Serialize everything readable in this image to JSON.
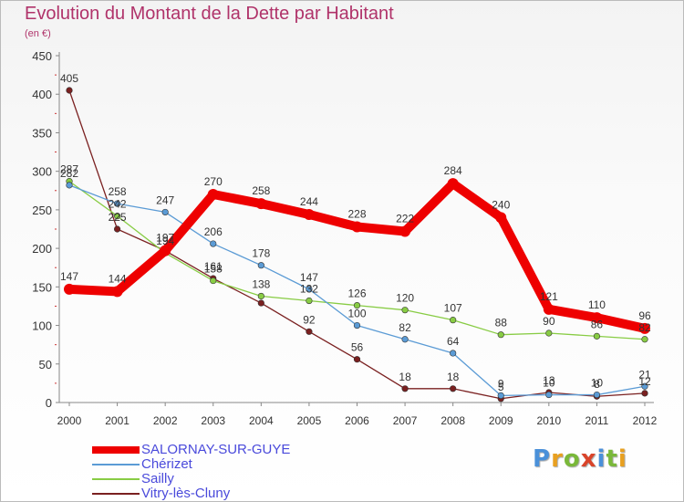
{
  "title": "Evolution du Montant de la Dette par Habitant",
  "subtitle": "(en €)",
  "logo_text": "Proxiti",
  "logo_colors": [
    "#4a90d9",
    "#e8a020",
    "#7ab83a",
    "#d9442a",
    "#4a90d9",
    "#7ab83a",
    "#e8a020"
  ],
  "chart_data": {
    "type": "line",
    "x": [
      "2000",
      "2001",
      "2002",
      "2003",
      "2004",
      "2005",
      "2006",
      "2007",
      "2008",
      "2009",
      "2010",
      "2011",
      "2012"
    ],
    "ylim": [
      0,
      450
    ],
    "yticks": [
      "0",
      "50",
      "100",
      "150",
      "200",
      "250",
      "300",
      "350",
      "400",
      "450"
    ],
    "grid": false,
    "legend_position": "bottom-left",
    "series": [
      {
        "name": "SALORNAY-SUR-GUYE",
        "color": "#ee0000",
        "thick": true,
        "values": [
          147,
          144,
          197,
          270,
          258,
          244,
          228,
          222,
          284,
          240,
          121,
          110,
          96
        ],
        "labels": [
          "147",
          "144",
          "197",
          "270",
          "258",
          "244",
          "228",
          "222",
          "284",
          "240",
          "121",
          "110",
          "96"
        ]
      },
      {
        "name": "Chérizet",
        "color": "#5b9bd5",
        "thick": false,
        "values": [
          282,
          258,
          247,
          206,
          178,
          147,
          100,
          82,
          64,
          9,
          10,
          10,
          21
        ],
        "labels": [
          "282",
          "258",
          "247",
          "206",
          "178",
          "147",
          "100",
          "82",
          "64",
          "9",
          "10",
          "10",
          "21"
        ]
      },
      {
        "name": "Sailly",
        "color": "#88cc44",
        "thick": false,
        "values": [
          287,
          242,
          194,
          158,
          138,
          132,
          126,
          120,
          107,
          88,
          90,
          86,
          82
        ],
        "labels": [
          "287",
          "242",
          "194",
          "158",
          "138",
          "132",
          "126",
          "120",
          "107",
          "88",
          "90",
          "86",
          "82"
        ]
      },
      {
        "name": "Vitry-lès-Cluny",
        "color": "#7a2020",
        "thick": false,
        "values": [
          405,
          225,
          197,
          161,
          129,
          92,
          56,
          18,
          18,
          5,
          13,
          8,
          12
        ],
        "labels": [
          "405",
          "225",
          "",
          "161",
          "",
          "92",
          "56",
          "18",
          "18",
          "5",
          "13",
          "8",
          "12"
        ]
      }
    ]
  }
}
